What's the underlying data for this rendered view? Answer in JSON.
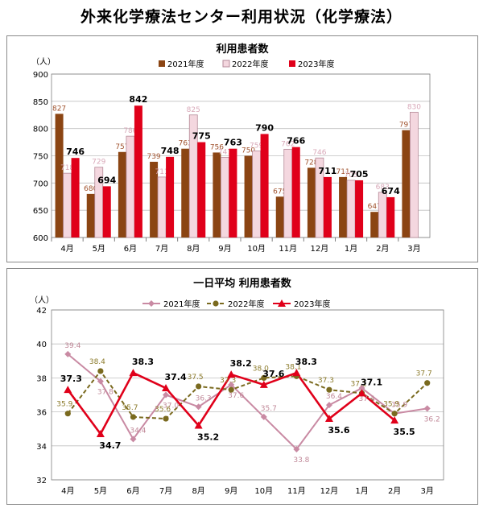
{
  "page_title": "外来化学療法センター利用状況（化学療法）",
  "colors": {
    "bar_2021": "#8B4513",
    "bar_2022": "#F4D7DF",
    "bar_2022_border": "#B58A98",
    "bar_2023": "#E0001A",
    "line_2021": "#C98AA3",
    "line_2022": "#7A6A1F",
    "line_2023": "#E0001A",
    "label_2021_bar": "#A0522D",
    "label_2022_bar": "#D8A8B8",
    "label_2021_line": "#C08898",
    "label_2022_line": "#8B7A2A"
  },
  "chart_data": [
    {
      "type": "bar",
      "title": "利用患者数",
      "ylabel": "（人）",
      "categories": [
        "4月",
        "5月",
        "6月",
        "7月",
        "8月",
        "9月",
        "10月",
        "11月",
        "12月",
        "1月",
        "2月",
        "3月"
      ],
      "ylim": [
        600,
        900
      ],
      "yticks": [
        600,
        650,
        700,
        750,
        800,
        850,
        900
      ],
      "legend_position": "top",
      "series": [
        {
          "name": "2021年度",
          "values": [
            827,
            680,
            757,
            739,
            763,
            756,
            750,
            675,
            728,
            711,
            647,
            797
          ]
        },
        {
          "name": "2022年度",
          "values": [
            718,
            729,
            786,
            711,
            825,
            747,
            759,
            762,
            746,
            705,
            683,
            830
          ]
        },
        {
          "name": "2023年度",
          "values": [
            746,
            694,
            842,
            748,
            775,
            763,
            790,
            766,
            711,
            705,
            674,
            null
          ]
        }
      ]
    },
    {
      "type": "line",
      "title": "一日平均 利用患者数",
      "ylabel": "（人）",
      "categories": [
        "4月",
        "5月",
        "6月",
        "7月",
        "8月",
        "9月",
        "10月",
        "11月",
        "12月",
        "1月",
        "2月",
        "3月"
      ],
      "ylim": [
        32,
        42
      ],
      "yticks": [
        32,
        34,
        36,
        38,
        40,
        42
      ],
      "legend_position": "top",
      "series": [
        {
          "name": "2021年度",
          "values": [
            39.4,
            37.8,
            34.4,
            37.0,
            36.3,
            37.6,
            35.7,
            33.8,
            36.4,
            37.4,
            35.9,
            36.2
          ]
        },
        {
          "name": "2022年度",
          "values": [
            35.9,
            38.4,
            35.7,
            35.6,
            37.5,
            37.3,
            38.0,
            38.1,
            37.3,
            37.1,
            35.9,
            37.7
          ]
        },
        {
          "name": "2023年度",
          "values": [
            37.3,
            34.7,
            38.3,
            37.4,
            35.2,
            38.2,
            37.6,
            38.3,
            35.6,
            37.1,
            35.5,
            null
          ]
        }
      ]
    }
  ]
}
